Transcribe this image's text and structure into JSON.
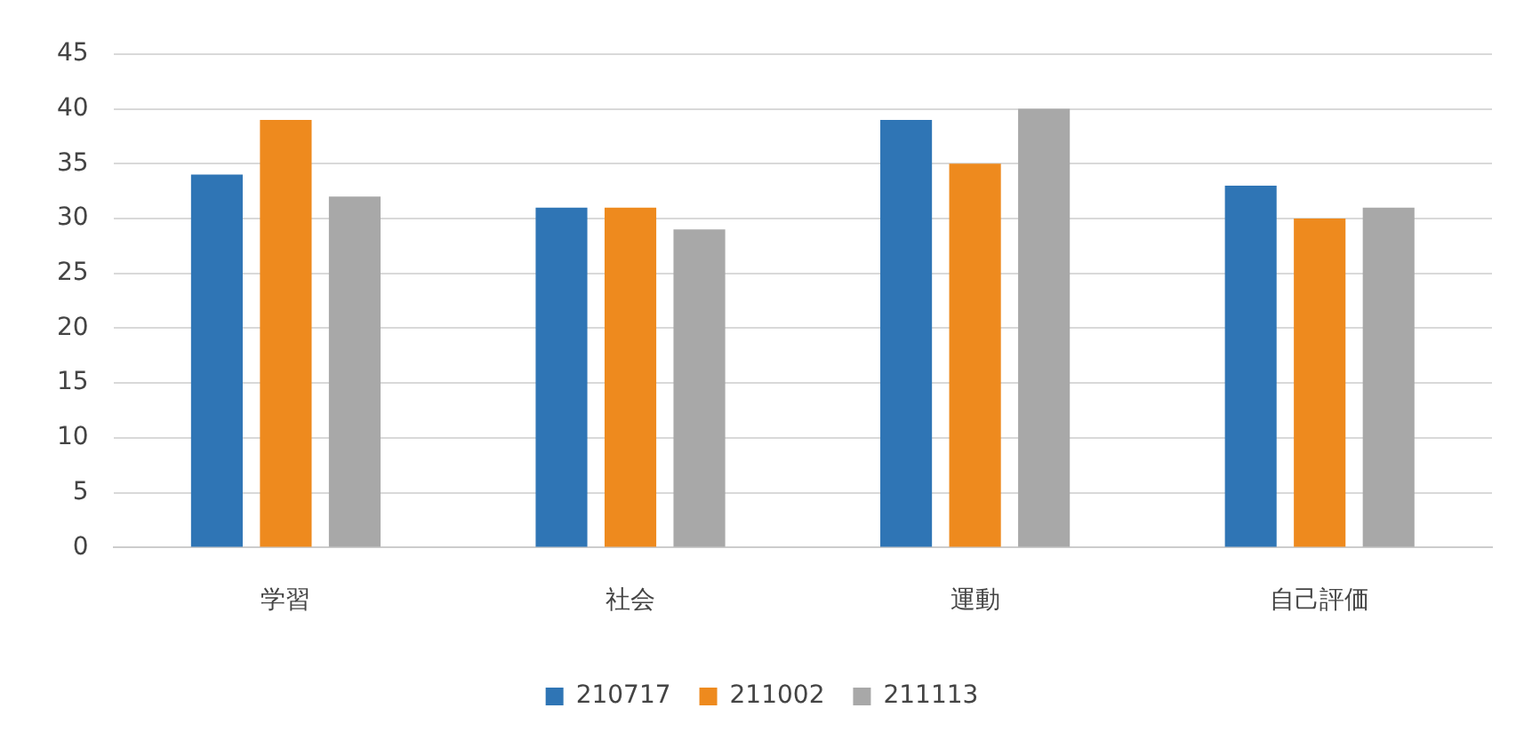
{
  "chart_data": {
    "type": "bar",
    "categories": [
      "学習",
      "社会",
      "運動",
      "自己評価"
    ],
    "series": [
      {
        "name": "210717",
        "color": "#2f75b5",
        "values": [
          34,
          31,
          39,
          33
        ]
      },
      {
        "name": "211002",
        "color": "#ee8a1e",
        "values": [
          39,
          31,
          35,
          30
        ]
      },
      {
        "name": "211113",
        "color": "#a8a8a8",
        "values": [
          32,
          29,
          40,
          31
        ]
      }
    ],
    "ylim": [
      0,
      45
    ],
    "yticks": [
      0,
      5,
      10,
      15,
      20,
      25,
      30,
      35,
      40,
      45
    ],
    "grid": "y",
    "legend": "bottom"
  }
}
